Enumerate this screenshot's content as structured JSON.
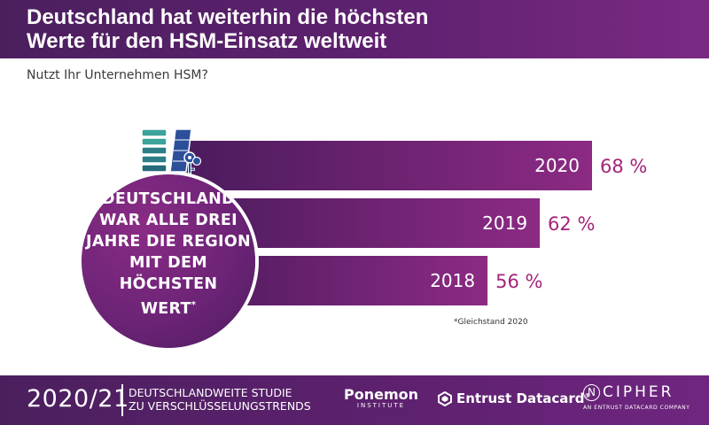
{
  "header": {
    "title": "Deutschland hat weiterhin die höchsten\nWerte für den HSM-Einsatz weltweit"
  },
  "subtitle": "Nutzt Ihr Unternehmen HSM?",
  "chart_data": {
    "type": "bar",
    "orientation": "horizontal",
    "title": "Deutschland hat weiterhin die höchsten Werte für den HSM-Einsatz weltweit",
    "question": "Nutzt Ihr Unternehmen HSM?",
    "categories": [
      "2020",
      "2019",
      "2018"
    ],
    "values": [
      68,
      62,
      56
    ],
    "value_labels": [
      "68 %",
      "62 %",
      "56 %"
    ],
    "unit": "%",
    "xlim": [
      0,
      100
    ],
    "grid": false,
    "colors": {
      "bar_start": "#4a1b5c",
      "bar_end": "#8c2a84",
      "value_label": "#a5257a"
    }
  },
  "callout": {
    "text_main": "DEUTSCHLAND\nWAR ALLE DREI\nJAHRE DIE REGION\nMIT DEM\nHÖCHSTEN\nWERT",
    "text_mark": "*"
  },
  "footnote": "*Gleichstand 2020",
  "footer": {
    "year": "2020/21",
    "study_line1": "DEUTSCHLANDWEITE STUDIE",
    "study_line2": "ZU VERSCHLÜSSELUNGSTRENDS",
    "ponemon": "Ponemon",
    "ponemon_sub": "INSTITUTE",
    "entrust": "Entrust Datacard",
    "entrust_mark": "®",
    "ncipher_letter": "N",
    "ncipher_word": "CIPHER",
    "ncipher_sub": "AN ENTRUST DATACARD COMPANY"
  },
  "icons": [
    "hsm-server-icon",
    "key-icon",
    "entrust-hexagon-icon"
  ]
}
